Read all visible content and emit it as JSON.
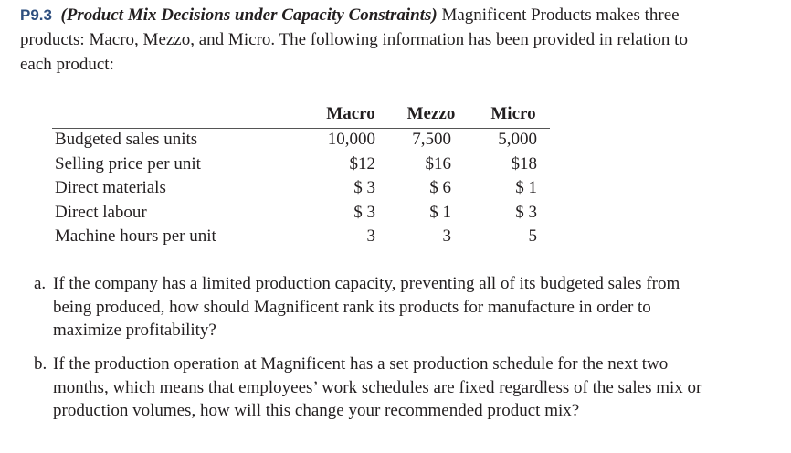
{
  "intro": {
    "number": "P9.3",
    "title": "(Product Mix Decisions under Capacity Constraints)",
    "lines": [
      "Magnificent Products makes three",
      "products: Macro, Mezzo, and Micro. The following information has been provided in relation to",
      "each product:"
    ]
  },
  "table": {
    "columns": [
      "Macro",
      "Mezzo",
      "Micro"
    ],
    "rows": [
      [
        "Budgeted sales units",
        "10,000",
        "7,500",
        "5,000"
      ],
      [
        "Selling price per unit",
        "$12",
        "$16",
        "$18"
      ],
      [
        "Direct materials",
        "$ 3",
        "$ 6",
        "$ 1"
      ],
      [
        "Direct labour",
        "$ 3",
        "$ 1",
        "$ 3"
      ],
      [
        "Machine hours per unit",
        "3",
        "3",
        "5"
      ]
    ]
  },
  "questions": [
    {
      "label": "a.",
      "lines": [
        "If the company has a limited production capacity, preventing all of its budgeted sales from",
        "being produced, how should Magnificent rank its products for manufacture in order to",
        "maximize profitability?"
      ]
    },
    {
      "label": "b.",
      "lines": [
        "If the production operation at Magnificent has a set production schedule for the next two",
        "months, which means that employees’ work schedules are fixed regardless of the sales mix or",
        "production volumes, how will this change your recommended product mix?"
      ]
    }
  ]
}
